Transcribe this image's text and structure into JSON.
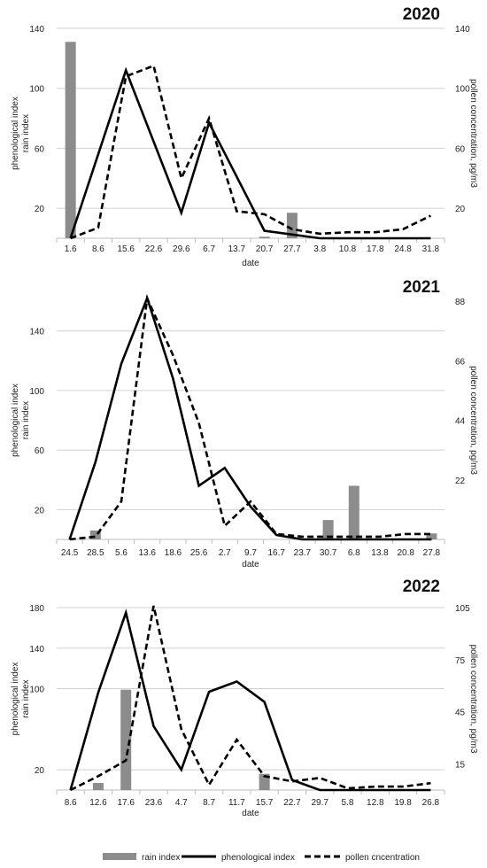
{
  "colors": {
    "rain": "#8c8c8c",
    "phenological": "#000000",
    "pollen": "#000000",
    "grid": "#d0d0d0",
    "axis": "#bdbdbd"
  },
  "legend": {
    "rain": "rain index",
    "phenological": "phenological index",
    "pollen": "pollen cncentration"
  },
  "chart_data": [
    {
      "type": "bar+line",
      "title": "2020",
      "xlabel": "date",
      "ylabel_left": [
        "phenological index",
        "rain index"
      ],
      "ylabel_right": "pollen concentration, pg/m3",
      "ylim_left": [
        0,
        140
      ],
      "ylim_right": [
        0,
        140
      ],
      "yticks_left": [
        20,
        60,
        100,
        140
      ],
      "yticks_right": [
        20,
        60,
        100,
        140
      ],
      "grid": true,
      "categories": [
        "1.6",
        "8.6",
        "15.6",
        "22.6",
        "29.6",
        "6.7",
        "13.7",
        "20.7",
        "27.7",
        "3.8",
        "10.8",
        "17.8",
        "24.8",
        "31.8"
      ],
      "series": [
        {
          "name": "rain index",
          "kind": "bar",
          "axis": "left",
          "points": [
            [
              0,
              131
            ],
            [
              7,
              1
            ],
            [
              8,
              17
            ]
          ]
        },
        {
          "name": "phenological index",
          "kind": "line",
          "axis": "left",
          "points": [
            [
              0,
              0
            ],
            [
              2,
              112
            ],
            [
              4,
              17
            ],
            [
              5,
              77
            ],
            [
              7,
              5
            ],
            [
              9,
              0
            ],
            [
              13,
              0
            ]
          ]
        },
        {
          "name": "pollen concentration",
          "kind": "dashed",
          "axis": "right",
          "points": [
            [
              0,
              0
            ],
            [
              1,
              7
            ],
            [
              2,
              108
            ],
            [
              3,
              115
            ],
            [
              4,
              40
            ],
            [
              5,
              80
            ],
            [
              6,
              18
            ],
            [
              7,
              16
            ],
            [
              8,
              6
            ],
            [
              9,
              3
            ],
            [
              10,
              4
            ],
            [
              11,
              4
            ],
            [
              12,
              6
            ],
            [
              13,
              15
            ]
          ]
        }
      ]
    },
    {
      "type": "bar+line",
      "title": "2021",
      "xlabel": "date",
      "ylabel_left": [
        "phenological index",
        "rain index"
      ],
      "ylabel_right": "pollen concentration, pg/m3",
      "ylim_left": [
        0,
        160
      ],
      "ylim_right": [
        0,
        88
      ],
      "yticks_left": [
        20,
        60,
        100,
        140
      ],
      "yticks_right": [
        22,
        44,
        66,
        88
      ],
      "grid": true,
      "categories": [
        "24.5",
        "28.5",
        "5.6",
        "13.6",
        "18.6",
        "25.6",
        "2.7",
        "9.7",
        "16.7",
        "23.7",
        "30.7",
        "6.8",
        "13.8",
        "20.8",
        "27.8"
      ],
      "series": [
        {
          "name": "rain index",
          "kind": "bar",
          "axis": "left",
          "points": [
            [
              1,
              6
            ],
            [
              10,
              13
            ],
            [
              11,
              36
            ],
            [
              14,
              4
            ]
          ]
        },
        {
          "name": "phenological index",
          "kind": "line",
          "axis": "left",
          "points": [
            [
              0,
              0
            ],
            [
              1,
              52
            ],
            [
              2,
              118
            ],
            [
              3,
              162
            ],
            [
              4,
              108
            ],
            [
              5,
              36
            ],
            [
              6,
              48
            ],
            [
              7,
              22
            ],
            [
              8,
              3
            ],
            [
              9,
              0
            ],
            [
              10,
              0
            ],
            [
              11,
              0
            ],
            [
              12,
              0
            ],
            [
              13,
              0
            ],
            [
              14,
              0
            ]
          ]
        },
        {
          "name": "pollen concentration",
          "kind": "dashed",
          "axis": "right",
          "points": [
            [
              0,
              0
            ],
            [
              1,
              1
            ],
            [
              2,
              14
            ],
            [
              3,
              89
            ],
            [
              4,
              68
            ],
            [
              5,
              43
            ],
            [
              6,
              5
            ],
            [
              7,
              14
            ],
            [
              8,
              2
            ],
            [
              9,
              1
            ],
            [
              10,
              1
            ],
            [
              11,
              1
            ],
            [
              12,
              1
            ],
            [
              13,
              2
            ],
            [
              14,
              2
            ]
          ]
        }
      ]
    },
    {
      "type": "bar+line",
      "title": "2022",
      "xlabel": "date",
      "ylabel_left": [
        "phenological index",
        "rain index"
      ],
      "ylabel_right": "pollen concentration, pg/m3",
      "ylim_left": [
        0,
        180
      ],
      "ylim_right": [
        0,
        105
      ],
      "yticks_left": [
        20,
        100,
        140,
        180
      ],
      "yticks_right": [
        15,
        45,
        75,
        105
      ],
      "grid": true,
      "categories": [
        "8.6",
        "12.6",
        "17.6",
        "23.6",
        "4.7",
        "8.7",
        "11.7",
        "15.7",
        "22.7",
        "29.7",
        "5.8",
        "12.8",
        "19.8",
        "26.8"
      ],
      "series": [
        {
          "name": "rain index",
          "kind": "bar",
          "axis": "left",
          "points": [
            [
              1,
              7
            ],
            [
              2,
              99
            ],
            [
              7,
              16
            ]
          ]
        },
        {
          "name": "phenological index",
          "kind": "line",
          "axis": "left",
          "points": [
            [
              0,
              0
            ],
            [
              1,
              96
            ],
            [
              2,
              175
            ],
            [
              3,
              63
            ],
            [
              4,
              20
            ],
            [
              5,
              97
            ],
            [
              6,
              107
            ],
            [
              7,
              87
            ],
            [
              8,
              10
            ],
            [
              9,
              0
            ],
            [
              10,
              0
            ],
            [
              11,
              0
            ],
            [
              12,
              0
            ],
            [
              13,
              0
            ]
          ]
        },
        {
          "name": "pollen concentration",
          "kind": "dashed",
          "axis": "right",
          "points": [
            [
              0,
              0
            ],
            [
              1,
              8
            ],
            [
              2,
              17
            ],
            [
              3,
              106
            ],
            [
              4,
              35
            ],
            [
              5,
              3
            ],
            [
              6,
              29
            ],
            [
              7,
              8
            ],
            [
              8,
              5
            ],
            [
              9,
              7
            ],
            [
              10,
              1
            ],
            [
              11,
              2
            ],
            [
              12,
              2
            ],
            [
              13,
              4
            ]
          ]
        }
      ]
    }
  ]
}
